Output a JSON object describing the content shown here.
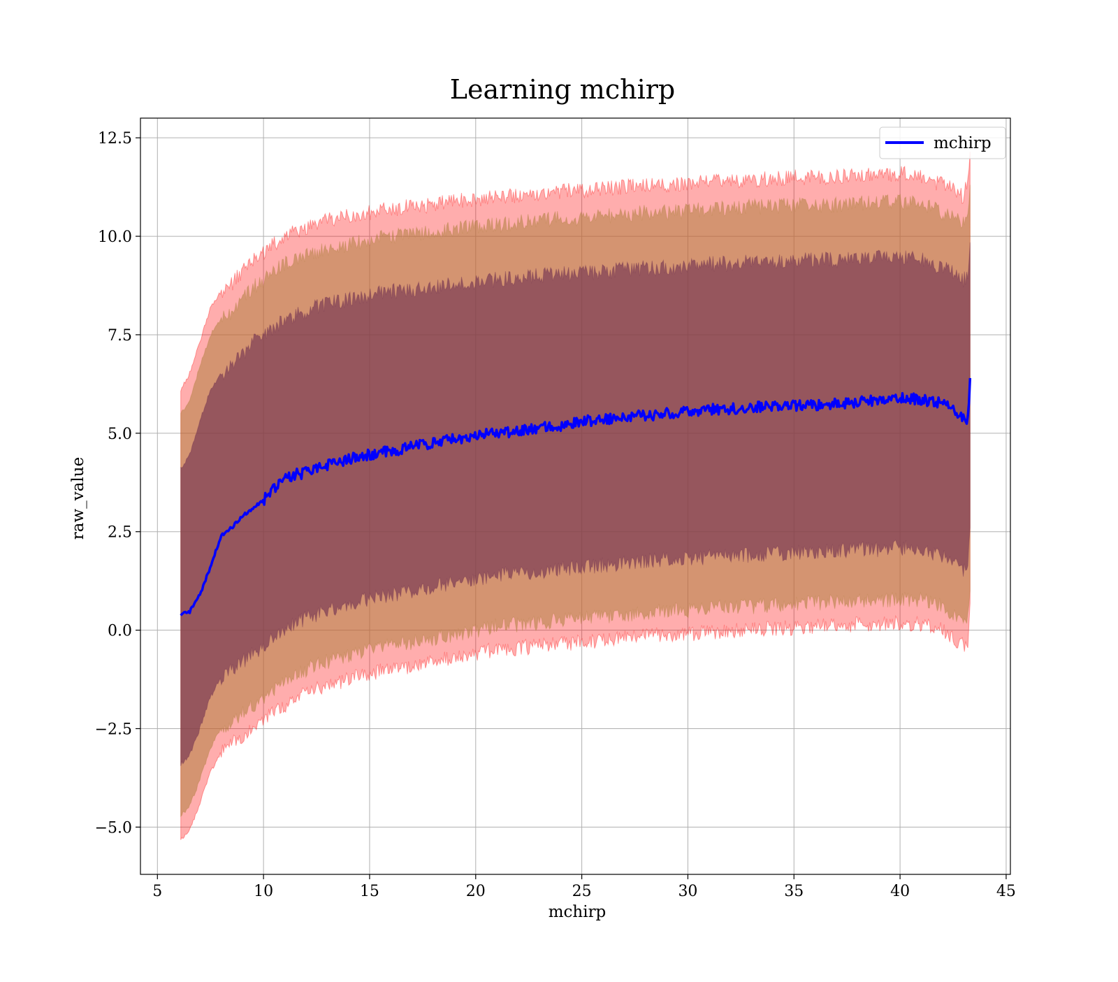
{
  "chart_data": {
    "type": "line",
    "title": "Learning mchirp",
    "xlabel": "mchirp",
    "ylabel": "raw_value",
    "xlim": [
      4.2,
      45.2
    ],
    "ylim": [
      -6.2,
      13.0
    ],
    "x_ticks": [
      5,
      10,
      15,
      20,
      25,
      30,
      35,
      40,
      45
    ],
    "x_tick_labels": [
      "5",
      "10",
      "15",
      "20",
      "25",
      "30",
      "35",
      "40",
      "45"
    ],
    "y_ticks": [
      -5.0,
      -2.5,
      0.0,
      2.5,
      5.0,
      7.5,
      10.0,
      12.5
    ],
    "y_tick_labels": [
      "−5.0",
      "−2.5",
      "0.0",
      "2.5",
      "5.0",
      "7.5",
      "10.0",
      "12.5"
    ],
    "grid": true,
    "legend_position": "top-right",
    "series": [
      {
        "name": "mchirp",
        "color": "#0000ff",
        "x": [
          6.1,
          6.5,
          7.0,
          7.5,
          8.0,
          8.5,
          9.0,
          9.5,
          10.0,
          10.5,
          11.0,
          11.5,
          12.0,
          12.5,
          13.0,
          14.0,
          15.0,
          16.0,
          17.0,
          18.0,
          19.0,
          20.0,
          21.0,
          22.0,
          23.0,
          24.0,
          25.0,
          26.0,
          27.0,
          28.0,
          29.0,
          30.0,
          31.0,
          32.0,
          33.0,
          34.0,
          35.0,
          36.0,
          37.0,
          38.0,
          39.0,
          40.0,
          41.0,
          42.0,
          42.5,
          43.0,
          43.2,
          43.3
        ],
        "y": [
          0.4,
          0.45,
          0.9,
          1.6,
          2.4,
          2.6,
          2.9,
          3.1,
          3.3,
          3.6,
          3.85,
          3.95,
          4.0,
          4.1,
          4.2,
          4.35,
          4.45,
          4.55,
          4.65,
          4.75,
          4.85,
          4.95,
          5.0,
          5.05,
          5.15,
          5.2,
          5.3,
          5.35,
          5.4,
          5.45,
          5.5,
          5.55,
          5.6,
          5.62,
          5.65,
          5.68,
          5.7,
          5.72,
          5.75,
          5.78,
          5.85,
          5.9,
          5.85,
          5.75,
          5.6,
          5.35,
          5.3,
          6.4
        ],
        "bands": [
          {
            "label": "",
            "color": "#ff0000",
            "opacity": 0.32,
            "upper": [
              6.1,
              6.5,
              7.3,
              8.2,
              8.6,
              8.8,
              9.1,
              9.4,
              9.6,
              9.8,
              10.0,
              10.1,
              10.2,
              10.3,
              10.4,
              10.5,
              10.6,
              10.7,
              10.75,
              10.8,
              10.9,
              10.95,
              11.0,
              11.05,
              11.1,
              11.15,
              11.15,
              11.2,
              11.25,
              11.3,
              11.3,
              11.35,
              11.4,
              11.4,
              11.45,
              11.45,
              11.5,
              11.5,
              11.5,
              11.55,
              11.55,
              11.6,
              11.5,
              11.3,
              11.2,
              11.0,
              11.5,
              12.1
            ],
            "lower": [
              -5.3,
              -5.1,
              -4.4,
              -3.6,
              -3.1,
              -2.9,
              -2.7,
              -2.5,
              -2.3,
              -2.1,
              -1.9,
              -1.7,
              -1.6,
              -1.5,
              -1.4,
              -1.25,
              -1.1,
              -1.0,
              -0.9,
              -0.8,
              -0.7,
              -0.6,
              -0.5,
              -0.45,
              -0.4,
              -0.35,
              -0.3,
              -0.25,
              -0.2,
              -0.15,
              -0.1,
              -0.1,
              -0.05,
              0.0,
              0.0,
              0.05,
              0.05,
              0.1,
              0.1,
              0.15,
              0.15,
              0.2,
              0.15,
              0.0,
              -0.2,
              -0.4,
              -0.3,
              0.6
            ]
          },
          {
            "label": "",
            "color": "#b08040",
            "opacity": 0.55,
            "upper": [
              5.5,
              5.8,
              6.7,
              7.5,
              7.9,
              8.1,
              8.4,
              8.7,
              8.9,
              9.1,
              9.3,
              9.4,
              9.5,
              9.6,
              9.7,
              9.8,
              9.9,
              10.0,
              10.05,
              10.1,
              10.2,
              10.25,
              10.3,
              10.35,
              10.4,
              10.45,
              10.45,
              10.5,
              10.55,
              10.6,
              10.6,
              10.65,
              10.7,
              10.7,
              10.75,
              10.75,
              10.8,
              10.8,
              10.8,
              10.85,
              10.85,
              10.9,
              10.8,
              10.6,
              10.5,
              10.3,
              10.4,
              11.2
            ],
            "lower": [
              -4.7,
              -4.5,
              -3.8,
              -3.0,
              -2.5,
              -2.3,
              -2.1,
              -1.9,
              -1.7,
              -1.5,
              -1.3,
              -1.1,
              -1.0,
              -0.9,
              -0.8,
              -0.65,
              -0.5,
              -0.4,
              -0.3,
              -0.2,
              -0.1,
              0.0,
              0.1,
              0.15,
              0.2,
              0.25,
              0.3,
              0.35,
              0.4,
              0.45,
              0.5,
              0.5,
              0.55,
              0.6,
              0.6,
              0.65,
              0.65,
              0.7,
              0.7,
              0.75,
              0.75,
              0.8,
              0.75,
              0.6,
              0.4,
              0.2,
              0.3,
              1.2
            ]
          },
          {
            "label": "",
            "color": "#703050",
            "opacity": 0.62,
            "upper": [
              4.1,
              4.4,
              5.3,
              6.1,
              6.5,
              6.7,
              7.0,
              7.3,
              7.5,
              7.7,
              7.9,
              8.0,
              8.1,
              8.2,
              8.3,
              8.4,
              8.5,
              8.6,
              8.65,
              8.7,
              8.8,
              8.85,
              8.9,
              8.95,
              9.0,
              9.05,
              9.05,
              9.1,
              9.15,
              9.2,
              9.2,
              9.25,
              9.3,
              9.3,
              9.35,
              9.35,
              9.4,
              9.4,
              9.4,
              9.45,
              9.45,
              9.5,
              9.4,
              9.2,
              9.1,
              8.9,
              9.0,
              10.0
            ],
            "lower": [
              -3.4,
              -3.2,
              -2.5,
              -1.7,
              -1.2,
              -1.0,
              -0.8,
              -0.6,
              -0.4,
              -0.2,
              0.0,
              0.2,
              0.3,
              0.4,
              0.5,
              0.65,
              0.8,
              0.9,
              1.0,
              1.1,
              1.2,
              1.3,
              1.4,
              1.45,
              1.5,
              1.55,
              1.6,
              1.65,
              1.7,
              1.75,
              1.8,
              1.8,
              1.85,
              1.9,
              1.9,
              1.95,
              1.95,
              2.0,
              2.0,
              2.05,
              2.05,
              2.1,
              2.05,
              1.9,
              1.7,
              1.5,
              1.6,
              2.6
            ]
          }
        ]
      }
    ]
  }
}
